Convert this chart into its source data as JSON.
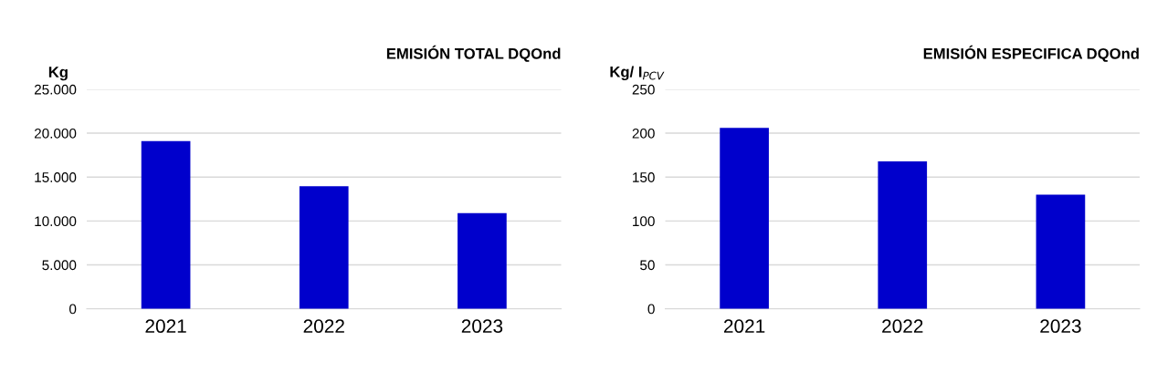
{
  "chart_data": [
    {
      "type": "bar",
      "title": "EMISIÓN TOTAL DQOnd",
      "ylabel": "Kg",
      "categories": [
        "2021",
        "2022",
        "2023"
      ],
      "values": [
        19100,
        13950,
        10900
      ],
      "color": "#0000cc",
      "ylim": [
        0,
        25000
      ],
      "yticks": [
        0,
        {
          "value": 5000,
          "label": "5.000"
        },
        {
          "value": 10000,
          "label": "10.000"
        },
        {
          "value": 15000,
          "label": "15.000"
        },
        {
          "value": 20000,
          "label": "20.000"
        },
        {
          "value": 25000,
          "label": "25.000"
        }
      ],
      "grid": "y"
    },
    {
      "type": "bar",
      "title": "EMISIÓN ESPECIFICA DQOnd",
      "ylabel": "Kg/ I$_{PCV}$",
      "categories": [
        "2021",
        "2022",
        "2023"
      ],
      "values": [
        206,
        168,
        130
      ],
      "color": "#0000cc",
      "ylim": [
        0,
        250
      ],
      "yticks": [
        0,
        50,
        100,
        150,
        200,
        250
      ],
      "grid": "y"
    }
  ]
}
